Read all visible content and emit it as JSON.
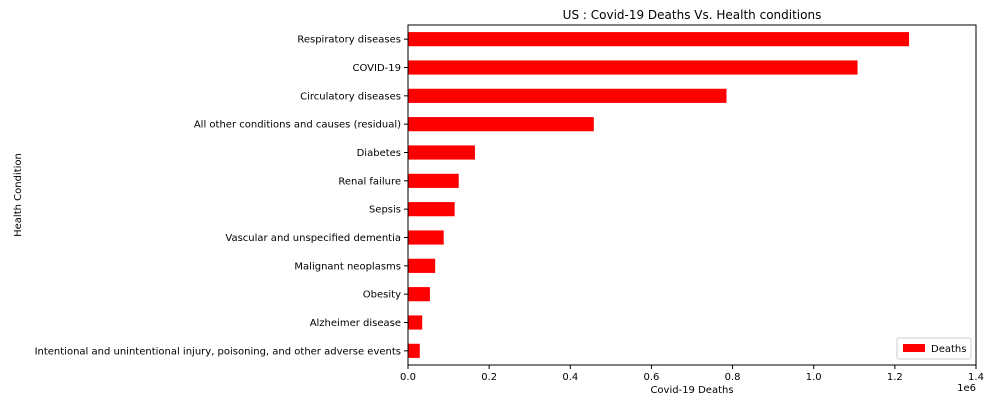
{
  "chart_data": {
    "type": "bar",
    "orientation": "horizontal",
    "title": "US : Covid-19 Deaths Vs. Health conditions",
    "xlabel": "Covid-19 Deaths",
    "ylabel": "Health Condition",
    "x_offset_label": "1e6",
    "xlim": [
      0,
      1.4
    ],
    "xticks": [
      "0.0",
      "0.2",
      "0.4",
      "0.6",
      "0.8",
      "1.0",
      "1.2",
      "1.4"
    ],
    "categories": [
      "Respiratory diseases",
      "COVID-19",
      "Circulatory diseases",
      "All other conditions and causes (residual)",
      "Diabetes",
      "Renal failure",
      "Sepsis",
      "Vascular and unspecified dementia",
      "Malignant neoplasms",
      "Obesity",
      "Alzheimer disease",
      "Intentional and unintentional injury, poisoning, and other adverse events"
    ],
    "series": [
      {
        "name": "Deaths",
        "color": "#ff0000",
        "values": [
          1.235,
          1.108,
          0.785,
          0.458,
          0.165,
          0.125,
          0.115,
          0.088,
          0.067,
          0.054,
          0.035,
          0.029
        ]
      }
    ],
    "legend_position": "lower-right",
    "grid": false
  }
}
